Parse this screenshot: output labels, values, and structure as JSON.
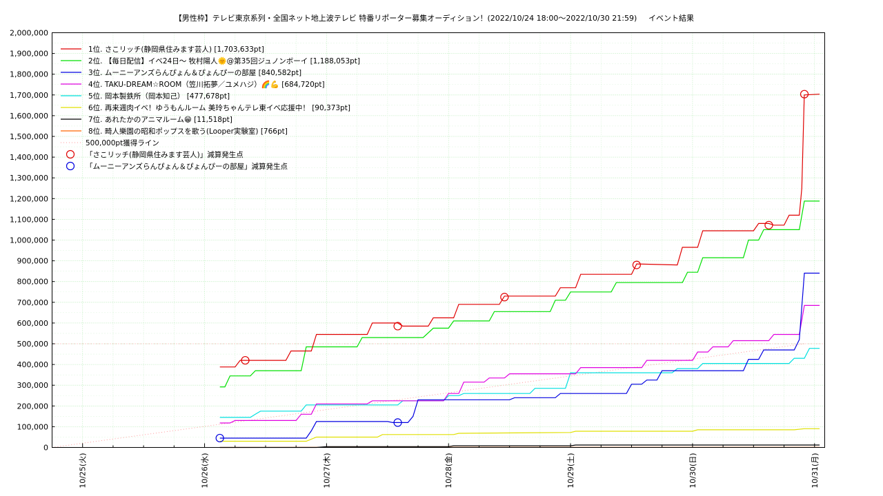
{
  "chart_data": {
    "type": "line",
    "title": "【男性枠】テレビ東京系列・全国ネット地上波テレビ 特番リポーター募集オーディション！(2022/10/24 18:00〜2022/10/30 21:59)",
    "subtitle": "イベント結果",
    "xlabel": "",
    "ylabel": "",
    "x_ticks": [
      "10/25(火)",
      "10/26(水)",
      "10/27(木)",
      "10/28(金)",
      "10/29(土)",
      "10/30(日)",
      "10/31(月)"
    ],
    "x_range": [
      "2022-10-24 18:00",
      "2022-10-31 02:00"
    ],
    "ylim": [
      0,
      2000000
    ],
    "y_ticks": [
      "0",
      "100,000",
      "200,000",
      "300,000",
      "400,000",
      "500,000",
      "600,000",
      "700,000",
      "800,000",
      "900,000",
      "1,000,000",
      "1,100,000",
      "1,200,000",
      "1,300,000",
      "1,400,000",
      "1,500,000",
      "1,600,000",
      "1,700,000",
      "1,800,000",
      "1,900,000",
      "2,000,000"
    ],
    "grid": true,
    "legend_position": "top-left",
    "series": [
      {
        "name": "1位. さこリッチ(静岡県住みます芸人) [1,703,633pt]",
        "color": "#e00000",
        "points": [
          [
            "2022-10-26 03:00",
            388000
          ],
          [
            "2022-10-26 06:00",
            388000
          ],
          [
            "2022-10-26 07:00",
            420000
          ],
          [
            "2022-10-26 16:00",
            420000
          ],
          [
            "2022-10-26 17:00",
            465000
          ],
          [
            "2022-10-26 21:00",
            465000
          ],
          [
            "2022-10-26 22:00",
            545000
          ],
          [
            "2022-10-27 08:00",
            545000
          ],
          [
            "2022-10-27 09:00",
            600000
          ],
          [
            "2022-10-27 14:00",
            600000
          ],
          [
            "2022-10-27 15:00",
            585000
          ],
          [
            "2022-10-27 20:00",
            585000
          ],
          [
            "2022-10-27 21:00",
            625000
          ],
          [
            "2022-10-28 01:00",
            625000
          ],
          [
            "2022-10-28 02:00",
            690000
          ],
          [
            "2022-10-28 10:00",
            690000
          ],
          [
            "2022-10-28 11:00",
            730000
          ],
          [
            "2022-10-28 21:00",
            730000
          ],
          [
            "2022-10-28 22:00",
            770000
          ],
          [
            "2022-10-29 01:00",
            770000
          ],
          [
            "2022-10-29 02:00",
            835000
          ],
          [
            "2022-10-29 12:00",
            835000
          ],
          [
            "2022-10-29 13:00",
            885000
          ],
          [
            "2022-10-29 21:00",
            880000
          ],
          [
            "2022-10-29 22:00",
            965000
          ],
          [
            "2022-10-30 01:00",
            965000
          ],
          [
            "2022-10-30 02:00",
            1045000
          ],
          [
            "2022-10-30 12:00",
            1045000
          ],
          [
            "2022-10-30 13:00",
            1080000
          ],
          [
            "2022-10-30 15:00",
            1080000
          ],
          [
            "2022-10-30 16:00",
            1072000
          ],
          [
            "2022-10-30 18:00",
            1072000
          ],
          [
            "2022-10-30 19:00",
            1120000
          ],
          [
            "2022-10-30 21:00",
            1120000
          ],
          [
            "2022-10-30 21:30",
            1250000
          ],
          [
            "2022-10-30 21:59",
            1700000
          ],
          [
            "2022-10-31 01:00",
            1703633
          ]
        ]
      },
      {
        "name": "2位. 【毎日配信】イベ24日〜 牧村陽人🌞@第35回ジュノンボーイ [1,188,053pt]",
        "color": "#00e000",
        "points": [
          [
            "2022-10-26 03:00",
            292000
          ],
          [
            "2022-10-26 04:00",
            292000
          ],
          [
            "2022-10-26 05:00",
            345000
          ],
          [
            "2022-10-26 09:00",
            345000
          ],
          [
            "2022-10-26 10:00",
            370000
          ],
          [
            "2022-10-26 19:00",
            370000
          ],
          [
            "2022-10-26 20:00",
            485000
          ],
          [
            "2022-10-27 06:00",
            485000
          ],
          [
            "2022-10-27 07:00",
            530000
          ],
          [
            "2022-10-27 19:00",
            530000
          ],
          [
            "2022-10-27 21:00",
            575000
          ],
          [
            "2022-10-28 00:00",
            575000
          ],
          [
            "2022-10-28 01:00",
            610000
          ],
          [
            "2022-10-28 08:00",
            610000
          ],
          [
            "2022-10-28 09:00",
            655000
          ],
          [
            "2022-10-28 20:00",
            655000
          ],
          [
            "2022-10-28 21:00",
            710000
          ],
          [
            "2022-10-28 23:00",
            710000
          ],
          [
            "2022-10-29 00:00",
            750000
          ],
          [
            "2022-10-29 08:00",
            750000
          ],
          [
            "2022-10-29 09:00",
            795000
          ],
          [
            "2022-10-29 22:00",
            795000
          ],
          [
            "2022-10-29 23:00",
            845000
          ],
          [
            "2022-10-30 01:00",
            845000
          ],
          [
            "2022-10-30 02:00",
            915000
          ],
          [
            "2022-10-30 10:00",
            915000
          ],
          [
            "2022-10-30 11:00",
            1000000
          ],
          [
            "2022-10-30 13:00",
            1000000
          ],
          [
            "2022-10-30 14:00",
            1050000
          ],
          [
            "2022-10-30 21:00",
            1050000
          ],
          [
            "2022-10-30 22:00",
            1188053
          ],
          [
            "2022-10-31 01:00",
            1188053
          ]
        ]
      },
      {
        "name": "3位. ムーニーアンズらんぴょん＆ぴょんぴーの部屋 [840,582pt]",
        "color": "#0000e0",
        "points": [
          [
            "2022-10-26 03:00",
            45000
          ],
          [
            "2022-10-26 20:00",
            45000
          ],
          [
            "2022-10-26 21:00",
            80000
          ],
          [
            "2022-10-26 22:00",
            125000
          ],
          [
            "2022-10-27 12:00",
            125000
          ],
          [
            "2022-10-27 13:00",
            120000
          ],
          [
            "2022-10-27 16:00",
            120000
          ],
          [
            "2022-10-27 17:00",
            150000
          ],
          [
            "2022-10-27 18:00",
            230000
          ],
          [
            "2022-10-28 12:00",
            230000
          ],
          [
            "2022-10-28 13:00",
            240000
          ],
          [
            "2022-10-28 21:00",
            240000
          ],
          [
            "2022-10-28 22:00",
            260000
          ],
          [
            "2022-10-29 11:00",
            260000
          ],
          [
            "2022-10-29 12:00",
            305000
          ],
          [
            "2022-10-29 14:00",
            305000
          ],
          [
            "2022-10-29 15:00",
            325000
          ],
          [
            "2022-10-29 17:00",
            325000
          ],
          [
            "2022-10-29 18:00",
            370000
          ],
          [
            "2022-10-30 10:00",
            370000
          ],
          [
            "2022-10-30 11:00",
            425000
          ],
          [
            "2022-10-30 13:00",
            425000
          ],
          [
            "2022-10-30 14:00",
            470000
          ],
          [
            "2022-10-30 20:00",
            470000
          ],
          [
            "2022-10-30 21:00",
            520000
          ],
          [
            "2022-10-30 22:00",
            840582
          ],
          [
            "2022-10-31 01:00",
            840582
          ]
        ]
      },
      {
        "name": "4位. TAKU-DREAM☆ROOM（笠川拓夢／ユメハジ）🌈💪 [684,720pt]",
        "color": "#e000e0",
        "points": [
          [
            "2022-10-26 03:00",
            118000
          ],
          [
            "2022-10-26 05:00",
            118000
          ],
          [
            "2022-10-26 06:00",
            130000
          ],
          [
            "2022-10-26 18:00",
            130000
          ],
          [
            "2022-10-26 19:00",
            160000
          ],
          [
            "2022-10-26 21:00",
            160000
          ],
          [
            "2022-10-26 22:00",
            210000
          ],
          [
            "2022-10-27 08:00",
            210000
          ],
          [
            "2022-10-27 09:00",
            225000
          ],
          [
            "2022-10-27 23:00",
            225000
          ],
          [
            "2022-10-28 00:00",
            260000
          ],
          [
            "2022-10-28 02:00",
            260000
          ],
          [
            "2022-10-28 03:00",
            315000
          ],
          [
            "2022-10-28 07:00",
            315000
          ],
          [
            "2022-10-28 08:00",
            335000
          ],
          [
            "2022-10-28 11:00",
            335000
          ],
          [
            "2022-10-28 12:00",
            355000
          ],
          [
            "2022-10-29 01:00",
            355000
          ],
          [
            "2022-10-29 02:00",
            385000
          ],
          [
            "2022-10-29 14:00",
            385000
          ],
          [
            "2022-10-29 15:00",
            420000
          ],
          [
            "2022-10-30 00:00",
            420000
          ],
          [
            "2022-10-30 01:00",
            460000
          ],
          [
            "2022-10-30 03:00",
            460000
          ],
          [
            "2022-10-30 04:00",
            485000
          ],
          [
            "2022-10-30 07:00",
            485000
          ],
          [
            "2022-10-30 08:00",
            515000
          ],
          [
            "2022-10-30 15:00",
            515000
          ],
          [
            "2022-10-30 16:00",
            545000
          ],
          [
            "2022-10-30 21:00",
            545000
          ],
          [
            "2022-10-30 22:00",
            684720
          ],
          [
            "2022-10-31 01:00",
            684720
          ]
        ]
      },
      {
        "name": "5位. 岡本製鉄所（岡本知己） [477,678pt]",
        "color": "#00e0e0",
        "points": [
          [
            "2022-10-26 03:00",
            145000
          ],
          [
            "2022-10-26 09:00",
            145000
          ],
          [
            "2022-10-26 10:00",
            160000
          ],
          [
            "2022-10-26 11:00",
            175000
          ],
          [
            "2022-10-26 19:00",
            175000
          ],
          [
            "2022-10-26 20:00",
            205000
          ],
          [
            "2022-10-27 14:00",
            205000
          ],
          [
            "2022-10-27 15:00",
            225000
          ],
          [
            "2022-10-27 23:00",
            225000
          ],
          [
            "2022-10-28 00:00",
            250000
          ],
          [
            "2022-10-28 02:00",
            250000
          ],
          [
            "2022-10-28 03:00",
            260000
          ],
          [
            "2022-10-28 16:00",
            260000
          ],
          [
            "2022-10-28 17:00",
            285000
          ],
          [
            "2022-10-28 23:00",
            285000
          ],
          [
            "2022-10-29 00:00",
            360000
          ],
          [
            "2022-10-29 20:00",
            360000
          ],
          [
            "2022-10-29 21:00",
            380000
          ],
          [
            "2022-10-30 01:00",
            380000
          ],
          [
            "2022-10-30 02:00",
            405000
          ],
          [
            "2022-10-30 19:00",
            405000
          ],
          [
            "2022-10-30 20:00",
            430000
          ],
          [
            "2022-10-30 22:00",
            430000
          ],
          [
            "2022-10-30 23:00",
            477678
          ],
          [
            "2022-10-31 01:00",
            477678
          ]
        ]
      },
      {
        "name": "6位. 再来週肉イベ！ゆうもんルーム 美玲ちゃんテレ東イベ応援中！ [90,373pt]",
        "color": "#e0e000",
        "points": [
          [
            "2022-10-26 03:00",
            30000
          ],
          [
            "2022-10-26 20:00",
            30000
          ],
          [
            "2022-10-26 22:00",
            50000
          ],
          [
            "2022-10-27 10:00",
            50000
          ],
          [
            "2022-10-27 11:00",
            62000
          ],
          [
            "2022-10-28 01:00",
            62000
          ],
          [
            "2022-10-28 02:00",
            68000
          ],
          [
            "2022-10-29 00:00",
            72000
          ],
          [
            "2022-10-29 01:00",
            78000
          ],
          [
            "2022-10-30 00:00",
            78000
          ],
          [
            "2022-10-30 01:00",
            85000
          ],
          [
            "2022-10-30 20:00",
            85000
          ],
          [
            "2022-10-30 22:00",
            90373
          ],
          [
            "2022-10-31 01:00",
            90373
          ]
        ]
      },
      {
        "name": "7位. あれたかのアニマルーム😁 [11,518pt]",
        "color": "#000000",
        "points": [
          [
            "2022-10-26 03:00",
            0
          ],
          [
            "2022-10-26 22:00",
            0
          ],
          [
            "2022-10-27 00:00",
            4000
          ],
          [
            "2022-10-28 00:00",
            4000
          ],
          [
            "2022-10-28 01:00",
            8000
          ],
          [
            "2022-10-29 00:00",
            8000
          ],
          [
            "2022-10-29 01:00",
            11518
          ],
          [
            "2022-10-31 01:00",
            11518
          ]
        ]
      },
      {
        "name": "8位. 畸人樂園の昭和ポップスを歌う(Looper実験室) [766pt]",
        "color": "#ff6600",
        "points": [
          [
            "2022-10-26 03:00",
            0
          ],
          [
            "2022-10-27 00:00",
            400
          ],
          [
            "2022-10-31 01:00",
            766
          ]
        ]
      }
    ],
    "reference_line": {
      "name": "500,000pt獲得ライン",
      "color": "#ff9999",
      "points": [
        [
          "2022-10-24 18:00",
          0
        ],
        [
          "2022-10-30 21:59",
          500000
        ]
      ]
    },
    "markers": [
      {
        "name": "「さこリッチ(静岡県住みます芸人)」減算発生点",
        "color": "#e00000",
        "points": [
          [
            "2022-10-26 08:00",
            420000
          ],
          [
            "2022-10-27 14:00",
            585000
          ],
          [
            "2022-10-28 11:00",
            725000
          ],
          [
            "2022-10-29 13:00",
            880000
          ],
          [
            "2022-10-30 15:00",
            1072000
          ],
          [
            "2022-10-30 22:00",
            1703633
          ]
        ]
      },
      {
        "name": "「ムーニーアンズらんぴょん＆ぴょんぴーの部屋」減算発生点",
        "color": "#0000e0",
        "points": [
          [
            "2022-10-26 03:00",
            45000
          ],
          [
            "2022-10-27 14:00",
            120000
          ]
        ]
      }
    ]
  }
}
